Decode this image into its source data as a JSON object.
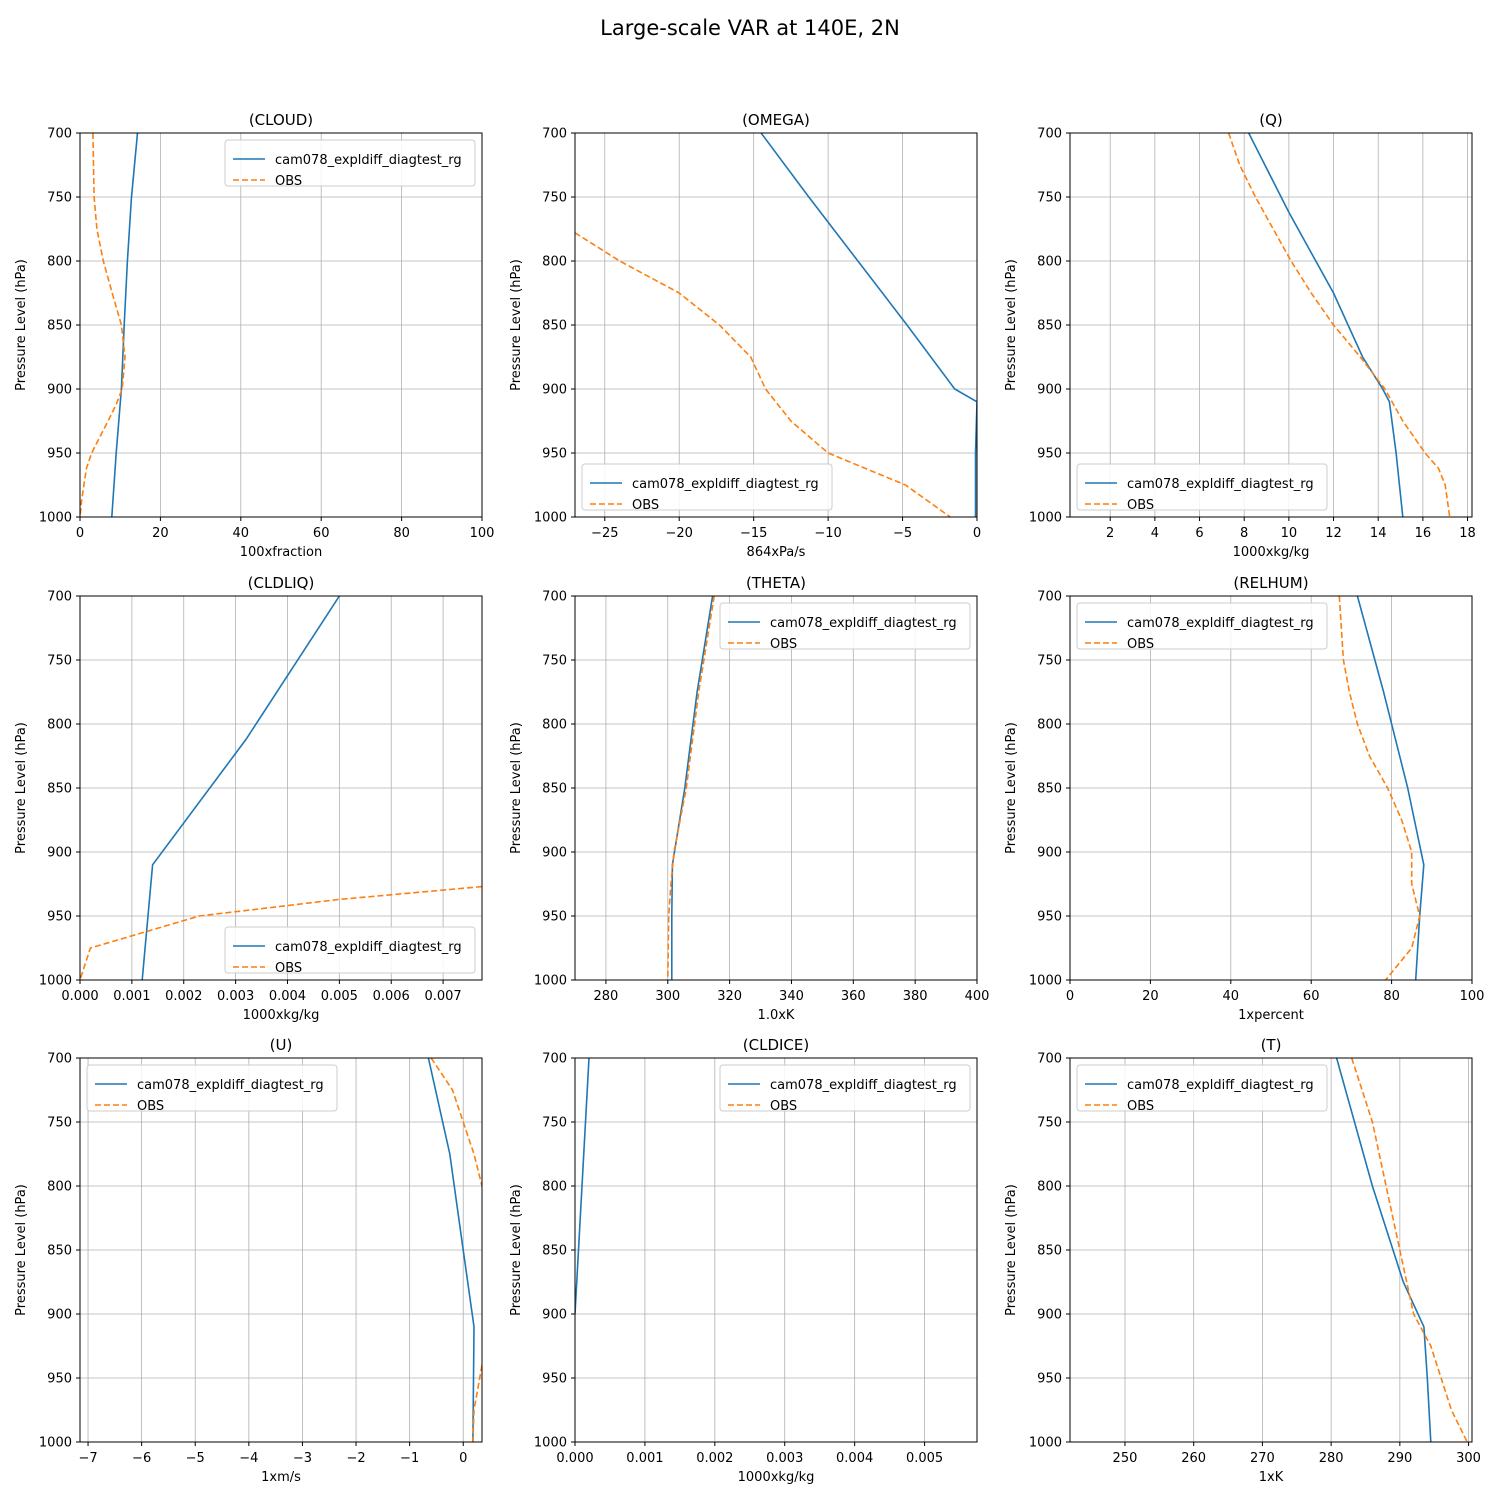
{
  "title": "Large-scale VAR at 140E, 2N",
  "colors": {
    "model": "#1f77b4",
    "obs": "#ff7f0e",
    "grid": "#b0b0b0"
  },
  "chart_data": [
    {
      "type": "line",
      "title": "(CLOUD)",
      "xlabel": "100xfraction",
      "ylabel": "Pressure Level (hPa)",
      "xlim": [
        0,
        100
      ],
      "ylim": [
        1000,
        700
      ],
      "grid": true,
      "legend": "upper right",
      "xticks": [
        0,
        20,
        40,
        60,
        80,
        100
      ],
      "yticks": [
        700,
        750,
        800,
        850,
        900,
        950,
        1000
      ],
      "series": [
        {
          "name": "cam078_expldiff_diagtest_rg",
          "style": "solid",
          "points": [
            [
              14.3,
              700
            ],
            [
              12.8,
              750
            ],
            [
              11.8,
              800
            ],
            [
              11.0,
              850
            ],
            [
              10.3,
              900
            ],
            [
              9.0,
              950
            ],
            [
              7.9,
              1000
            ]
          ]
        },
        {
          "name": "OBS",
          "style": "dashed",
          "points": [
            [
              3.2,
              700
            ],
            [
              3.5,
              750
            ],
            [
              4.2,
              775
            ],
            [
              5.8,
              800
            ],
            [
              8.0,
              825
            ],
            [
              10.3,
              850
            ],
            [
              11.2,
              875
            ],
            [
              10.5,
              900
            ],
            [
              9.0,
              912
            ],
            [
              7.0,
              925
            ],
            [
              5.0,
              937
            ],
            [
              2.9,
              950
            ],
            [
              1.6,
              962
            ],
            [
              0.4,
              987
            ],
            [
              0.0,
              1000
            ]
          ]
        }
      ]
    },
    {
      "type": "line",
      "title": "(OMEGA)",
      "xlabel": "864xPa/s",
      "ylabel": "Pressure Level (hPa)",
      "xlim": [
        -27,
        0
      ],
      "ylim": [
        1000,
        700
      ],
      "grid": true,
      "legend": "lower left",
      "xticks": [
        -25,
        -20,
        -15,
        -10,
        -5,
        0
      ],
      "yticks": [
        700,
        750,
        800,
        850,
        900,
        950,
        1000
      ],
      "series": [
        {
          "name": "cam078_expldiff_diagtest_rg",
          "style": "solid",
          "points": [
            [
              -14.5,
              700
            ],
            [
              -11.3,
              750
            ],
            [
              -8.0,
              800
            ],
            [
              -4.7,
              850
            ],
            [
              -1.5,
              900
            ],
            [
              0.0,
              910
            ],
            [
              -0.1,
              950
            ],
            [
              -0.1,
              1000
            ]
          ]
        },
        {
          "name": "OBS",
          "style": "dashed",
          "points": [
            [
              -27.0,
              778
            ],
            [
              -24.0,
              800
            ],
            [
              -20.0,
              825
            ],
            [
              -17.3,
              850
            ],
            [
              -15.2,
              875
            ],
            [
              -14.2,
              900
            ],
            [
              -12.5,
              925
            ],
            [
              -10.0,
              950
            ],
            [
              -7.5,
              962
            ],
            [
              -4.8,
              975
            ],
            [
              -1.8,
              1000
            ]
          ]
        }
      ]
    },
    {
      "type": "line",
      "title": "(Q)",
      "xlabel": "1000xkg/kg",
      "ylabel": "Pressure Level (hPa)",
      "xlim": [
        0.2,
        18.2
      ],
      "ylim": [
        1000,
        700
      ],
      "grid": true,
      "legend": "lower left",
      "xticks": [
        2,
        4,
        6,
        8,
        10,
        12,
        14,
        16,
        18
      ],
      "yticks": [
        700,
        750,
        800,
        850,
        900,
        950,
        1000
      ],
      "series": [
        {
          "name": "cam078_expldiff_diagtest_rg",
          "style": "solid",
          "points": [
            [
              8.2,
              700
            ],
            [
              10.0,
              762
            ],
            [
              12.0,
              825
            ],
            [
              13.3,
              875
            ],
            [
              14.2,
              900
            ],
            [
              14.5,
              910
            ],
            [
              14.8,
              950
            ],
            [
              15.1,
              1000
            ]
          ]
        },
        {
          "name": "OBS",
          "style": "dashed",
          "points": [
            [
              7.3,
              700
            ],
            [
              7.8,
              725
            ],
            [
              8.5,
              750
            ],
            [
              9.3,
              775
            ],
            [
              10.1,
              800
            ],
            [
              11.0,
              825
            ],
            [
              12.0,
              850
            ],
            [
              13.2,
              875
            ],
            [
              14.3,
              900
            ],
            [
              15.1,
              925
            ],
            [
              16.1,
              950
            ],
            [
              16.7,
              962
            ],
            [
              17.0,
              975
            ],
            [
              17.2,
              1000
            ]
          ]
        }
      ]
    },
    {
      "type": "line",
      "title": "(CLDLIQ)",
      "xlabel": "1000xkg/kg",
      "ylabel": "Pressure Level (hPa)",
      "xlim": [
        0,
        0.00775
      ],
      "ylim": [
        1000,
        700
      ],
      "grid": true,
      "legend": "lower right",
      "xticks": [
        0.0,
        0.001,
        0.002,
        0.003,
        0.004,
        0.005,
        0.006,
        0.007
      ],
      "xticklabels": [
        "0.000",
        "0.001",
        "0.002",
        "0.003",
        "0.004",
        "0.005",
        "0.006",
        "0.007"
      ],
      "yticks": [
        700,
        750,
        800,
        850,
        900,
        950,
        1000
      ],
      "series": [
        {
          "name": "cam078_expldiff_diagtest_rg",
          "style": "solid",
          "points": [
            [
              0.005,
              700
            ],
            [
              0.0032,
              812
            ],
            [
              0.0014,
              910
            ],
            [
              0.0012,
              1000
            ]
          ]
        },
        {
          "name": "OBS",
          "style": "dashed",
          "points": [
            [
              0.00775,
              927
            ],
            [
              0.005,
              937
            ],
            [
              0.0023,
              950
            ],
            [
              0.0002,
              975
            ],
            [
              0.0,
              1000
            ]
          ]
        }
      ]
    },
    {
      "type": "line",
      "title": "(THETA)",
      "xlabel": "1.0xK",
      "ylabel": "Pressure Level (hPa)",
      "xlim": [
        270,
        400
      ],
      "ylim": [
        1000,
        700
      ],
      "grid": true,
      "legend": "upper right",
      "xticks": [
        280,
        300,
        320,
        340,
        360,
        380,
        400
      ],
      "yticks": [
        700,
        750,
        800,
        850,
        900,
        950,
        1000
      ],
      "series": [
        {
          "name": "cam078_expldiff_diagtest_rg",
          "style": "solid",
          "points": [
            [
              314.5,
              700
            ],
            [
              309.5,
              775
            ],
            [
              305.5,
              850
            ],
            [
              301.5,
              910
            ],
            [
              301.3,
              950
            ],
            [
              301.3,
              1000
            ]
          ]
        },
        {
          "name": "OBS",
          "style": "dashed",
          "points": [
            [
              315.0,
              700
            ],
            [
              310.0,
              775
            ],
            [
              306.0,
              850
            ],
            [
              302.0,
              900
            ],
            [
              301.0,
              925
            ],
            [
              300.3,
              950
            ],
            [
              300.0,
              1000
            ]
          ]
        }
      ]
    },
    {
      "type": "line",
      "title": "(RELHUM)",
      "xlabel": "1xpercent",
      "ylabel": "Pressure Level (hPa)",
      "xlim": [
        0,
        100
      ],
      "ylim": [
        1000,
        700
      ],
      "grid": true,
      "legend": "upper left",
      "xticks": [
        0,
        20,
        40,
        60,
        80,
        100
      ],
      "yticks": [
        700,
        750,
        800,
        850,
        900,
        950,
        1000
      ],
      "series": [
        {
          "name": "cam078_expldiff_diagtest_rg",
          "style": "solid",
          "points": [
            [
              71.5,
              700
            ],
            [
              78.0,
              775
            ],
            [
              84.0,
              850
            ],
            [
              88.0,
              910
            ],
            [
              87.0,
              950
            ],
            [
              86.0,
              1000
            ]
          ]
        },
        {
          "name": "OBS",
          "style": "dashed",
          "points": [
            [
              67.0,
              700
            ],
            [
              68.0,
              750
            ],
            [
              69.5,
              775
            ],
            [
              71.5,
              800
            ],
            [
              74.5,
              825
            ],
            [
              79.0,
              850
            ],
            [
              82.5,
              875
            ],
            [
              85.0,
              900
            ],
            [
              85.0,
              925
            ],
            [
              87.0,
              950
            ],
            [
              85.0,
              975
            ],
            [
              78.5,
              1000
            ]
          ]
        }
      ]
    },
    {
      "type": "line",
      "title": "(U)",
      "xlabel": "1xm/s",
      "ylabel": "Pressure Level (hPa)",
      "xlim": [
        -7.15,
        0.35
      ],
      "ylim": [
        1000,
        700
      ],
      "grid": true,
      "legend": "upper left",
      "xticks": [
        -7,
        -6,
        -5,
        -4,
        -3,
        -2,
        -1,
        0
      ],
      "yticks": [
        700,
        750,
        800,
        850,
        900,
        950,
        1000
      ],
      "series": [
        {
          "name": "cam078_expldiff_diagtest_rg",
          "style": "solid",
          "points": [
            [
              -0.65,
              700
            ],
            [
              -0.25,
              775
            ],
            [
              0.0,
              850
            ],
            [
              0.2,
              910
            ],
            [
              0.18,
              1000
            ]
          ]
        },
        {
          "name": "OBS",
          "style": "dashed",
          "points": [
            [
              -0.6,
              700
            ],
            [
              -0.2,
              725
            ],
            [
              0.0,
              750
            ],
            [
              0.2,
              775
            ],
            [
              0.35,
              800
            ]
          ]
        },
        {
          "name": "OBS",
          "style": "dashed",
          "legend": false,
          "points": [
            [
              0.35,
              940
            ],
            [
              0.2,
              975
            ],
            [
              0.18,
              1000
            ]
          ]
        }
      ]
    },
    {
      "type": "line",
      "title": "(CLDICE)",
      "xlabel": "1000xkg/kg",
      "ylabel": "Pressure Level (hPa)",
      "xlim": [
        0,
        0.00575
      ],
      "ylim": [
        1000,
        700
      ],
      "grid": true,
      "legend": "upper right",
      "xticks": [
        0.0,
        0.001,
        0.002,
        0.003,
        0.004,
        0.005
      ],
      "xticklabels": [
        "0.000",
        "0.001",
        "0.002",
        "0.003",
        "0.004",
        "0.005"
      ],
      "yticks": [
        700,
        750,
        800,
        850,
        900,
        950,
        1000
      ],
      "series": [
        {
          "name": "cam078_expldiff_diagtest_rg",
          "style": "solid",
          "points": [
            [
              0.0002,
              700
            ],
            [
              0.0001,
              800
            ],
            [
              0.0,
              900
            ]
          ]
        },
        {
          "name": "OBS",
          "style": "dashed",
          "points": []
        }
      ]
    },
    {
      "type": "line",
      "title": "(T)",
      "xlabel": "1xK",
      "ylabel": "Pressure Level (hPa)",
      "xlim": [
        242,
        300.5
      ],
      "ylim": [
        1000,
        700
      ],
      "grid": true,
      "legend": "upper left",
      "xticks": [
        250,
        260,
        270,
        280,
        290,
        300
      ],
      "yticks": [
        700,
        750,
        800,
        850,
        900,
        950,
        1000
      ],
      "series": [
        {
          "name": "cam078_expldiff_diagtest_rg",
          "style": "solid",
          "points": [
            [
              280.8,
              700
            ],
            [
              286.0,
              800
            ],
            [
              290.5,
              875
            ],
            [
              293.5,
              910
            ],
            [
              294.0,
              950
            ],
            [
              294.5,
              1000
            ]
          ]
        },
        {
          "name": "OBS",
          "style": "dashed",
          "points": [
            [
              283.0,
              700
            ],
            [
              286.0,
              750
            ],
            [
              288.0,
              800
            ],
            [
              290.0,
              850
            ],
            [
              292.0,
              900
            ],
            [
              294.5,
              925
            ],
            [
              296.0,
              950
            ],
            [
              297.5,
              975
            ],
            [
              299.8,
              1000
            ]
          ]
        }
      ]
    }
  ]
}
